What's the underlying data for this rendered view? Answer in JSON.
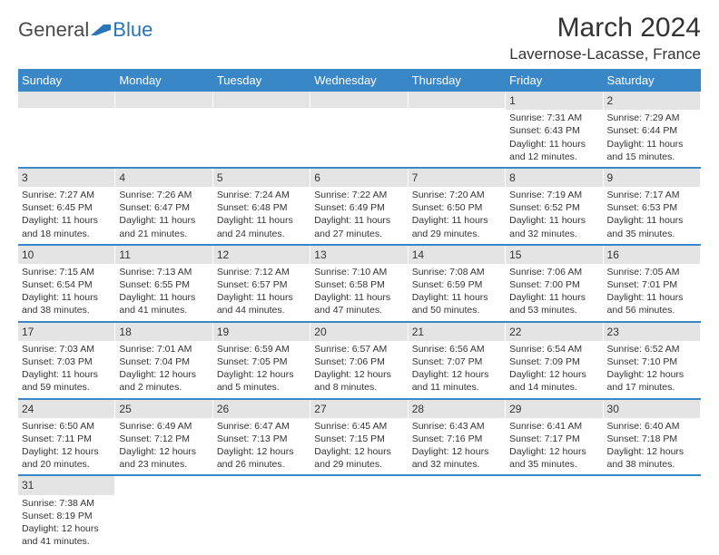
{
  "logo": {
    "text1": "General",
    "text2": "Blue"
  },
  "title": "March 2024",
  "location": "Lavernose-Lacasse, France",
  "colors": {
    "header_bg": "#3a87c8",
    "header_text": "#ffffff",
    "daynum_bg": "#e4e4e4",
    "row_border": "#3a87c8",
    "text": "#333333",
    "logo_gray": "#4a4a4a",
    "logo_blue": "#2876b8"
  },
  "day_labels": [
    "Sunday",
    "Monday",
    "Tuesday",
    "Wednesday",
    "Thursday",
    "Friday",
    "Saturday"
  ],
  "weeks": [
    [
      {
        "empty": true
      },
      {
        "empty": true
      },
      {
        "empty": true
      },
      {
        "empty": true
      },
      {
        "empty": true
      },
      {
        "day": "1",
        "sunrise": "Sunrise: 7:31 AM",
        "sunset": "Sunset: 6:43 PM",
        "dl1": "Daylight: 11 hours",
        "dl2": "and 12 minutes."
      },
      {
        "day": "2",
        "sunrise": "Sunrise: 7:29 AM",
        "sunset": "Sunset: 6:44 PM",
        "dl1": "Daylight: 11 hours",
        "dl2": "and 15 minutes."
      }
    ],
    [
      {
        "day": "3",
        "sunrise": "Sunrise: 7:27 AM",
        "sunset": "Sunset: 6:45 PM",
        "dl1": "Daylight: 11 hours",
        "dl2": "and 18 minutes."
      },
      {
        "day": "4",
        "sunrise": "Sunrise: 7:26 AM",
        "sunset": "Sunset: 6:47 PM",
        "dl1": "Daylight: 11 hours",
        "dl2": "and 21 minutes."
      },
      {
        "day": "5",
        "sunrise": "Sunrise: 7:24 AM",
        "sunset": "Sunset: 6:48 PM",
        "dl1": "Daylight: 11 hours",
        "dl2": "and 24 minutes."
      },
      {
        "day": "6",
        "sunrise": "Sunrise: 7:22 AM",
        "sunset": "Sunset: 6:49 PM",
        "dl1": "Daylight: 11 hours",
        "dl2": "and 27 minutes."
      },
      {
        "day": "7",
        "sunrise": "Sunrise: 7:20 AM",
        "sunset": "Sunset: 6:50 PM",
        "dl1": "Daylight: 11 hours",
        "dl2": "and 29 minutes."
      },
      {
        "day": "8",
        "sunrise": "Sunrise: 7:19 AM",
        "sunset": "Sunset: 6:52 PM",
        "dl1": "Daylight: 11 hours",
        "dl2": "and 32 minutes."
      },
      {
        "day": "9",
        "sunrise": "Sunrise: 7:17 AM",
        "sunset": "Sunset: 6:53 PM",
        "dl1": "Daylight: 11 hours",
        "dl2": "and 35 minutes."
      }
    ],
    [
      {
        "day": "10",
        "sunrise": "Sunrise: 7:15 AM",
        "sunset": "Sunset: 6:54 PM",
        "dl1": "Daylight: 11 hours",
        "dl2": "and 38 minutes."
      },
      {
        "day": "11",
        "sunrise": "Sunrise: 7:13 AM",
        "sunset": "Sunset: 6:55 PM",
        "dl1": "Daylight: 11 hours",
        "dl2": "and 41 minutes."
      },
      {
        "day": "12",
        "sunrise": "Sunrise: 7:12 AM",
        "sunset": "Sunset: 6:57 PM",
        "dl1": "Daylight: 11 hours",
        "dl2": "and 44 minutes."
      },
      {
        "day": "13",
        "sunrise": "Sunrise: 7:10 AM",
        "sunset": "Sunset: 6:58 PM",
        "dl1": "Daylight: 11 hours",
        "dl2": "and 47 minutes."
      },
      {
        "day": "14",
        "sunrise": "Sunrise: 7:08 AM",
        "sunset": "Sunset: 6:59 PM",
        "dl1": "Daylight: 11 hours",
        "dl2": "and 50 minutes."
      },
      {
        "day": "15",
        "sunrise": "Sunrise: 7:06 AM",
        "sunset": "Sunset: 7:00 PM",
        "dl1": "Daylight: 11 hours",
        "dl2": "and 53 minutes."
      },
      {
        "day": "16",
        "sunrise": "Sunrise: 7:05 AM",
        "sunset": "Sunset: 7:01 PM",
        "dl1": "Daylight: 11 hours",
        "dl2": "and 56 minutes."
      }
    ],
    [
      {
        "day": "17",
        "sunrise": "Sunrise: 7:03 AM",
        "sunset": "Sunset: 7:03 PM",
        "dl1": "Daylight: 11 hours",
        "dl2": "and 59 minutes."
      },
      {
        "day": "18",
        "sunrise": "Sunrise: 7:01 AM",
        "sunset": "Sunset: 7:04 PM",
        "dl1": "Daylight: 12 hours",
        "dl2": "and 2 minutes."
      },
      {
        "day": "19",
        "sunrise": "Sunrise: 6:59 AM",
        "sunset": "Sunset: 7:05 PM",
        "dl1": "Daylight: 12 hours",
        "dl2": "and 5 minutes."
      },
      {
        "day": "20",
        "sunrise": "Sunrise: 6:57 AM",
        "sunset": "Sunset: 7:06 PM",
        "dl1": "Daylight: 12 hours",
        "dl2": "and 8 minutes."
      },
      {
        "day": "21",
        "sunrise": "Sunrise: 6:56 AM",
        "sunset": "Sunset: 7:07 PM",
        "dl1": "Daylight: 12 hours",
        "dl2": "and 11 minutes."
      },
      {
        "day": "22",
        "sunrise": "Sunrise: 6:54 AM",
        "sunset": "Sunset: 7:09 PM",
        "dl1": "Daylight: 12 hours",
        "dl2": "and 14 minutes."
      },
      {
        "day": "23",
        "sunrise": "Sunrise: 6:52 AM",
        "sunset": "Sunset: 7:10 PM",
        "dl1": "Daylight: 12 hours",
        "dl2": "and 17 minutes."
      }
    ],
    [
      {
        "day": "24",
        "sunrise": "Sunrise: 6:50 AM",
        "sunset": "Sunset: 7:11 PM",
        "dl1": "Daylight: 12 hours",
        "dl2": "and 20 minutes."
      },
      {
        "day": "25",
        "sunrise": "Sunrise: 6:49 AM",
        "sunset": "Sunset: 7:12 PM",
        "dl1": "Daylight: 12 hours",
        "dl2": "and 23 minutes."
      },
      {
        "day": "26",
        "sunrise": "Sunrise: 6:47 AM",
        "sunset": "Sunset: 7:13 PM",
        "dl1": "Daylight: 12 hours",
        "dl2": "and 26 minutes."
      },
      {
        "day": "27",
        "sunrise": "Sunrise: 6:45 AM",
        "sunset": "Sunset: 7:15 PM",
        "dl1": "Daylight: 12 hours",
        "dl2": "and 29 minutes."
      },
      {
        "day": "28",
        "sunrise": "Sunrise: 6:43 AM",
        "sunset": "Sunset: 7:16 PM",
        "dl1": "Daylight: 12 hours",
        "dl2": "and 32 minutes."
      },
      {
        "day": "29",
        "sunrise": "Sunrise: 6:41 AM",
        "sunset": "Sunset: 7:17 PM",
        "dl1": "Daylight: 12 hours",
        "dl2": "and 35 minutes."
      },
      {
        "day": "30",
        "sunrise": "Sunrise: 6:40 AM",
        "sunset": "Sunset: 7:18 PM",
        "dl1": "Daylight: 12 hours",
        "dl2": "and 38 minutes."
      }
    ],
    [
      {
        "day": "31",
        "sunrise": "Sunrise: 7:38 AM",
        "sunset": "Sunset: 8:19 PM",
        "dl1": "Daylight: 12 hours",
        "dl2": "and 41 minutes."
      },
      {
        "empty": true
      },
      {
        "empty": true
      },
      {
        "empty": true
      },
      {
        "empty": true
      },
      {
        "empty": true
      },
      {
        "empty": true
      }
    ]
  ]
}
